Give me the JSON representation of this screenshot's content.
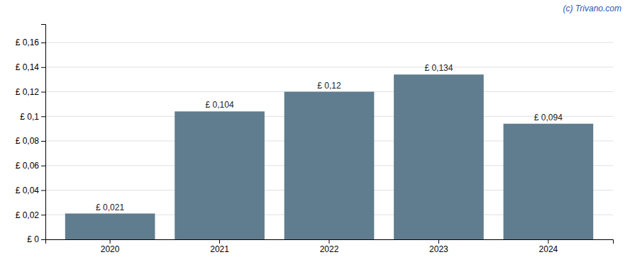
{
  "chart_data": {
    "type": "bar",
    "categories": [
      "2020",
      "2021",
      "2022",
      "2023",
      "2024"
    ],
    "values": [
      0.021,
      0.104,
      0.12,
      0.134,
      0.094
    ],
    "value_labels": [
      "£ 0,021",
      "£ 0,104",
      "£ 0,12",
      "£ 0,134",
      "£ 0,094"
    ],
    "color": "#5f7d8e",
    "ylim": [
      0,
      0.175
    ],
    "yticks": [
      {
        "value": 0,
        "label": "£ 0"
      },
      {
        "value": 0.02,
        "label": "£ 0,02"
      },
      {
        "value": 0.04,
        "label": "£ 0,04"
      },
      {
        "value": 0.06,
        "label": "£ 0,06"
      },
      {
        "value": 0.08,
        "label": "£ 0,08"
      },
      {
        "value": 0.1,
        "label": "£ 0,1"
      },
      {
        "value": 0.12,
        "label": "£ 0,12"
      },
      {
        "value": 0.14,
        "label": "£ 0,14"
      },
      {
        "value": 0.16,
        "label": "£ 0,16"
      }
    ],
    "grid": true,
    "data_labels": true,
    "annotations": [
      "(c) Trivano.com"
    ]
  }
}
